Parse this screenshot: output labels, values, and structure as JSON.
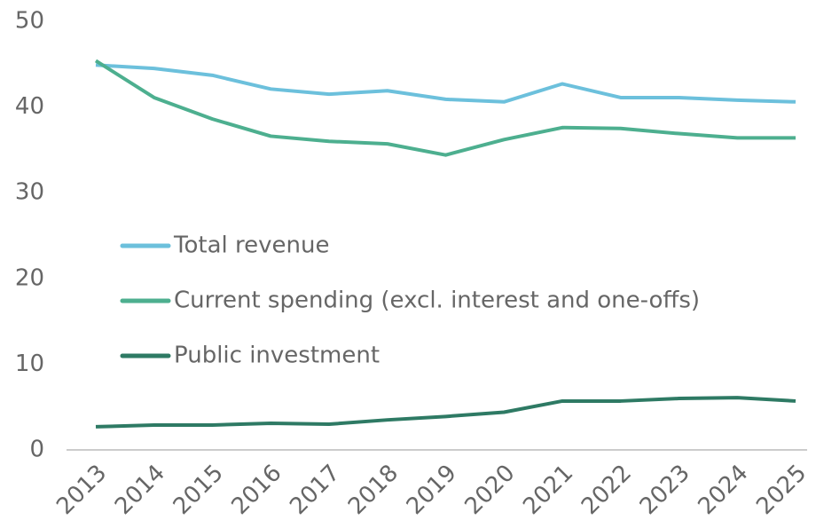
{
  "chart_data": {
    "type": "line",
    "categories": [
      "2013",
      "2014",
      "2015",
      "2016",
      "2017",
      "2018",
      "2019",
      "2020",
      "2021",
      "2022",
      "2023",
      "2024",
      "2025"
    ],
    "series": [
      {
        "name": "Total revenue",
        "color": "#6cc0dc",
        "values": [
          44.9,
          44.5,
          43.7,
          42.1,
          41.5,
          41.9,
          40.9,
          40.6,
          42.7,
          41.1,
          41.1,
          40.8,
          40.6
        ]
      },
      {
        "name": "Current spending (excl. interest and one-offs)",
        "color": "#4daf8f",
        "values": [
          45.4,
          41.1,
          38.6,
          36.6,
          36.0,
          35.7,
          34.4,
          36.2,
          37.6,
          37.5,
          36.9,
          36.4,
          36.4
        ]
      },
      {
        "name": "Public investment",
        "color": "#2e7a64",
        "values": [
          2.7,
          2.9,
          2.9,
          3.1,
          3.0,
          3.5,
          3.9,
          4.4,
          5.7,
          5.7,
          6.0,
          6.1,
          5.7
        ]
      }
    ],
    "ylim": [
      0,
      50
    ],
    "yticks": [
      0,
      10,
      20,
      30,
      40,
      50
    ],
    "grid": false,
    "legend": "center-left"
  }
}
